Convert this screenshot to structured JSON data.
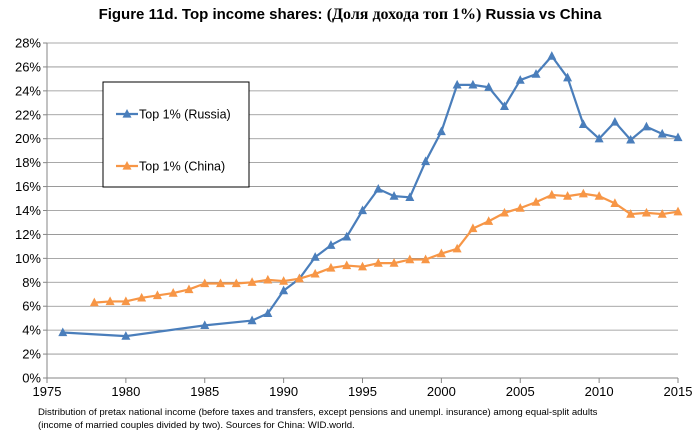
{
  "title": {
    "prefix": "Figure 11d. Top income shares:",
    "middle": "(Доля дохода топ 1%)",
    "suffix": "Russia vs China"
  },
  "caption": {
    "line1": "Distribution of pretax national income (before taxes and transfers, except pensions and unempl. insurance) among equal-split adults",
    "line2": "(income of married couples divided by two). Sources for China: WID.world."
  },
  "chart_data": {
    "type": "line",
    "title": "Figure 11d. Top income shares: (Доля дохода топ 1%) Russia vs China",
    "xlabel": "",
    "ylabel": "",
    "xlim": [
      1975,
      2015
    ],
    "ylim": [
      0,
      28
    ],
    "x_ticks": [
      1975,
      1980,
      1985,
      1990,
      1995,
      2000,
      2005,
      2010,
      2015
    ],
    "y_ticks": [
      "0%",
      "2%",
      "4%",
      "6%",
      "8%",
      "10%",
      "12%",
      "14%",
      "16%",
      "18%",
      "20%",
      "22%",
      "24%",
      "26%",
      "28%"
    ],
    "y_tick_values": [
      0,
      2,
      4,
      6,
      8,
      10,
      12,
      14,
      16,
      18,
      20,
      22,
      24,
      26,
      28
    ],
    "grid": "horizontal",
    "legend_position": "boxed, upper-left",
    "series": [
      {
        "name": "Top 1% (Russia)",
        "color": "#4a7ebb",
        "marker": "triangle",
        "x": [
          1976,
          1980,
          1985,
          1988,
          1989,
          1990,
          1991,
          1992,
          1993,
          1994,
          1995,
          1996,
          1997,
          1998,
          1999,
          2000,
          2001,
          2002,
          2003,
          2004,
          2005,
          2006,
          2007,
          2008,
          2009,
          2010,
          2011,
          2012,
          2013,
          2014,
          2015
        ],
        "values": [
          3.8,
          3.5,
          4.4,
          4.8,
          5.4,
          7.3,
          8.3,
          10.1,
          11.1,
          11.8,
          14.0,
          15.8,
          15.2,
          15.1,
          18.1,
          20.6,
          24.5,
          24.5,
          24.3,
          22.7,
          24.9,
          25.4,
          26.9,
          25.1,
          21.2,
          20.0,
          21.4,
          19.9,
          21.0,
          20.4,
          20.1
        ]
      },
      {
        "name": "Top 1% (China)",
        "color": "#f79646",
        "marker": "triangle",
        "x": [
          1978,
          1979,
          1980,
          1981,
          1982,
          1983,
          1984,
          1985,
          1986,
          1987,
          1988,
          1989,
          1990,
          1991,
          1992,
          1993,
          1994,
          1995,
          1996,
          1997,
          1998,
          1999,
          2000,
          2001,
          2002,
          2003,
          2004,
          2005,
          2006,
          2007,
          2008,
          2009,
          2010,
          2011,
          2012,
          2013,
          2014,
          2015
        ],
        "values": [
          6.3,
          6.4,
          6.4,
          6.7,
          6.9,
          7.1,
          7.4,
          7.9,
          7.9,
          7.9,
          8.0,
          8.2,
          8.1,
          8.3,
          8.7,
          9.2,
          9.4,
          9.3,
          9.6,
          9.6,
          9.9,
          9.9,
          10.4,
          10.8,
          12.5,
          13.1,
          13.8,
          14.2,
          14.7,
          15.3,
          15.2,
          15.4,
          15.2,
          14.6,
          13.7,
          13.8,
          13.7,
          13.9
        ]
      }
    ]
  }
}
